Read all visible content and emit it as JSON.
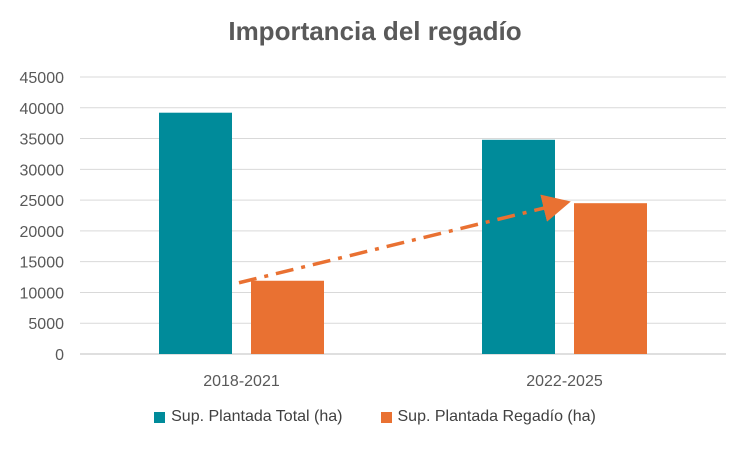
{
  "chart_data": {
    "type": "bar",
    "title": "Importancia del regadío",
    "xlabel": "",
    "ylabel": "",
    "categories": [
      "2018-2021",
      "2022-2025"
    ],
    "series": [
      {
        "name": "Sup. Plantada Total (ha)",
        "values": [
          39200,
          34800
        ],
        "color": "#008B9A"
      },
      {
        "name": "Sup. Plantada Regadío (ha)",
        "values": [
          11900,
          24500
        ],
        "color": "#E97132"
      }
    ],
    "ylim": [
      0,
      45000
    ],
    "yticks": [
      0,
      5000,
      10000,
      15000,
      20000,
      25000,
      30000,
      35000,
      40000,
      45000
    ],
    "grid": true,
    "legend_position": "bottom",
    "annotations": [
      {
        "type": "dash-dot-arrow",
        "from": {
          "category": "2018-2021",
          "y": 11900
        },
        "to": {
          "category": "2022-2025",
          "y": 24500
        },
        "color": "#E97132"
      }
    ]
  }
}
